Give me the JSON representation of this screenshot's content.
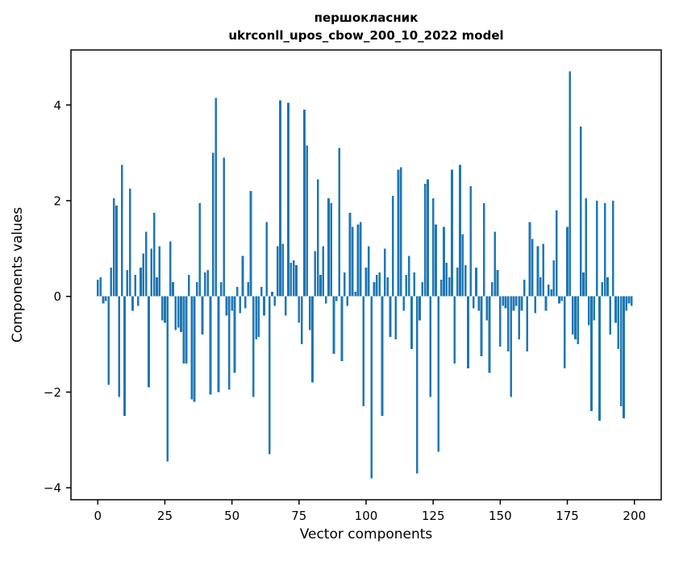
{
  "figure": {
    "background": "#ffffff"
  },
  "chart_data": {
    "type": "bar",
    "title_line1": "першокласник",
    "title_line2": "ukrconll_upos_cbow_200_10_2022 model",
    "xlabel": "Vector components",
    "ylabel": "Components values",
    "bar_color": "#1f77b4",
    "axis_color": "#000000",
    "grid": false,
    "legend": false,
    "xlim": [
      -10,
      210
    ],
    "ylim": [
      -4.25,
      5.15
    ],
    "x_ticks": [
      0,
      25,
      50,
      75,
      100,
      125,
      150,
      175,
      200
    ],
    "x_tick_labels": [
      "0",
      "25",
      "50",
      "75",
      "100",
      "125",
      "150",
      "175",
      "200"
    ],
    "y_ticks": [
      -4,
      -2,
      0,
      2,
      4
    ],
    "y_tick_labels": [
      "−4",
      "−2",
      "0",
      "2",
      "4"
    ],
    "x_start": 0,
    "bar_width_units": 0.8,
    "values": [
      0.35,
      0.4,
      -0.15,
      -0.1,
      -1.85,
      0.6,
      2.05,
      1.9,
      -2.1,
      2.75,
      -2.5,
      0.55,
      2.25,
      -0.3,
      0.45,
      -0.2,
      0.6,
      0.9,
      1.35,
      -1.9,
      1.0,
      1.75,
      0.4,
      1.05,
      -0.5,
      -0.55,
      -3.45,
      1.15,
      0.3,
      -0.7,
      -0.65,
      -0.75,
      -1.4,
      -1.4,
      0.45,
      -2.15,
      -2.2,
      0.3,
      1.95,
      -0.8,
      0.5,
      0.55,
      -2.05,
      3.0,
      4.15,
      -2.0,
      0.3,
      2.9,
      -0.4,
      -1.95,
      -0.3,
      -1.6,
      0.2,
      -0.35,
      0.85,
      -0.25,
      0.3,
      2.2,
      -2.1,
      -0.9,
      -0.85,
      0.2,
      -0.4,
      1.55,
      -3.3,
      0.1,
      -0.2,
      1.05,
      4.1,
      1.1,
      -0.4,
      4.05,
      0.7,
      0.75,
      0.65,
      -0.55,
      -1.0,
      3.9,
      3.15,
      -0.7,
      -1.8,
      0.95,
      2.45,
      0.45,
      1.05,
      -0.15,
      2.05,
      1.95,
      -1.2,
      -0.1,
      3.1,
      -1.35,
      0.5,
      -0.2,
      1.75,
      1.45,
      0.1,
      1.5,
      1.55,
      -2.3,
      0.6,
      1.05,
      -3.8,
      0.3,
      0.45,
      0.5,
      -2.5,
      1.0,
      0.4,
      -0.85,
      2.1,
      -0.9,
      2.65,
      2.7,
      -0.3,
      0.45,
      0.85,
      -1.1,
      0.5,
      -3.7,
      -0.5,
      0.3,
      2.35,
      2.45,
      -2.1,
      2.05,
      1.5,
      -3.25,
      0.35,
      1.45,
      0.7,
      0.4,
      2.65,
      -1.4,
      0.6,
      2.75,
      1.3,
      0.65,
      -1.5,
      2.3,
      -0.25,
      0.6,
      -0.3,
      -1.25,
      1.95,
      -0.5,
      -1.6,
      0.3,
      1.35,
      0.55,
      -1.05,
      -0.2,
      -0.25,
      -1.15,
      -2.1,
      -0.3,
      -0.2,
      -0.9,
      -0.3,
      0.35,
      -1.15,
      1.55,
      1.2,
      -0.35,
      1.05,
      0.4,
      1.1,
      -0.3,
      0.25,
      0.15,
      0.75,
      1.8,
      -0.15,
      -0.1,
      -1.5,
      1.45,
      4.7,
      -0.8,
      -0.9,
      -1.0,
      3.55,
      0.5,
      2.05,
      -0.6,
      -2.4,
      -0.5,
      2.0,
      -2.6,
      0.3,
      1.95,
      0.4,
      -0.8,
      2.0,
      -0.55,
      -1.1,
      -2.3,
      -2.55,
      -0.3,
      -0.15,
      -0.2
    ]
  }
}
